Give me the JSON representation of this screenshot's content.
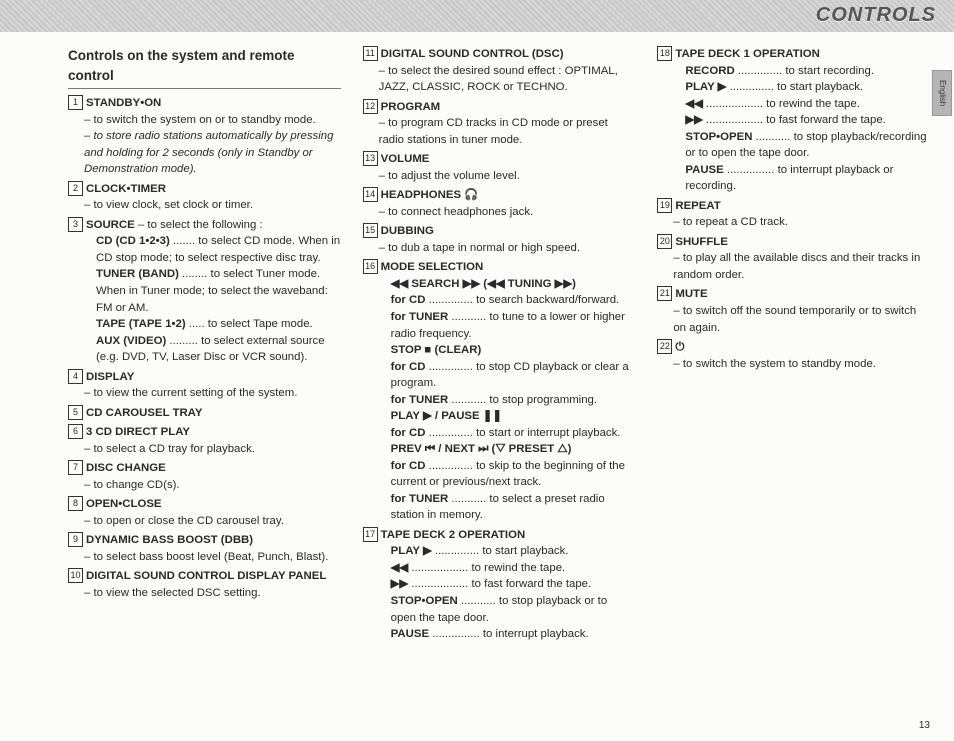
{
  "topbar_title": "CONTROLS",
  "side_tab": "English",
  "section_title": "Controls on the system and remote control",
  "page_number": "13",
  "col1": [
    {
      "num": "1",
      "head": "STANDBY•ON",
      "lines": [
        "– to switch the system on or to standby mode.",
        "– to store radio stations automatically by pressing and holding for 2 seconds (only in Standby or Demonstration mode)."
      ],
      "lastItalic": true
    },
    {
      "num": "2",
      "head": "CLOCK•TIMER",
      "lines": [
        "– to view clock, set clock or timer."
      ]
    },
    {
      "num": "3",
      "head": "SOURCE",
      "tail": " – to select the following :",
      "kv": [
        {
          "k": "CD (CD 1•2•3)",
          "v": "to select CD mode.  When in CD stop mode; to select respective disc tray."
        },
        {
          "k": "TUNER (BAND)",
          "v": "to select Tuner mode.  When in Tuner mode; to select the waveband:  FM or AM."
        },
        {
          "k": "TAPE (TAPE 1•2)",
          "v": "to select Tape mode."
        },
        {
          "k": "AUX (VIDEO)",
          "v": "to select external source (e.g. DVD, TV, Laser Disc or VCR sound)."
        }
      ]
    },
    {
      "num": "4",
      "head": "DISPLAY",
      "lines": [
        "– to view the current setting of the system."
      ]
    },
    {
      "num": "5",
      "head": "CD CAROUSEL TRAY"
    },
    {
      "num": "6",
      "head": "3 CD DIRECT PLAY",
      "lines": [
        "– to select a CD tray for playback."
      ]
    },
    {
      "num": "7",
      "head": "DISC CHANGE",
      "lines": [
        "– to change CD(s)."
      ]
    },
    {
      "num": "8",
      "head": "OPEN•CLOSE",
      "lines": [
        "– to open or close the CD carousel tray."
      ]
    },
    {
      "num": "9",
      "head": "DYNAMIC BASS BOOST  (DBB)",
      "lines": [
        "– to select bass boost level (Beat, Punch, Blast)."
      ]
    },
    {
      "num": "10",
      "head": "DIGITAL SOUND CONTROL DISPLAY PANEL",
      "lines": [
        "– to view the selected DSC setting."
      ]
    }
  ],
  "col2": [
    {
      "num": "11",
      "head": "DIGITAL SOUND CONTROL (DSC)",
      "lines": [
        "– to select the desired sound effect : OPTIMAL, JAZZ, CLASSIC, ROCK or TECHNO."
      ]
    },
    {
      "num": "12",
      "head": "PROGRAM",
      "lines": [
        "– to program CD tracks in CD mode or preset radio stations in tuner mode."
      ]
    },
    {
      "num": "13",
      "head": "VOLUME",
      "lines": [
        "– to adjust the volume level."
      ]
    },
    {
      "num": "14",
      "head": "HEADPHONES  🎧",
      "lines": [
        "– to connect headphones jack."
      ]
    },
    {
      "num": "15",
      "head": "DUBBING",
      "lines": [
        "– to dub a tape in normal or high speed."
      ]
    },
    {
      "num": "16",
      "head": "MODE SELECTION",
      "subhead": "◀◀ SEARCH ▶▶  (◀◀ TUNING ▶▶)",
      "kv2": [
        {
          "k": "for CD",
          "v": "to search backward/forward."
        },
        {
          "k": "for TUNER",
          "v": "to tune to a lower or higher radio frequency."
        }
      ],
      "subhead2": "STOP ■   (CLEAR)",
      "kv3": [
        {
          "k": "for CD",
          "v": "to stop CD playback or clear a program."
        },
        {
          "k": "for TUNER",
          "v": "to stop programming."
        }
      ],
      "subhead3": "PLAY ▶ / PAUSE ❚❚",
      "kv4": [
        {
          "k": "for CD",
          "v": "to start or interrupt playback."
        }
      ],
      "subhead4": "PREV ⏮ / NEXT ⏭  (▽ PRESET △)",
      "kv5": [
        {
          "k": "for CD",
          "v": "to skip to the beginning of the current or previous/next track."
        },
        {
          "k": "for TUNER",
          "v": "to select a preset radio station in memory."
        }
      ]
    },
    {
      "num": "17",
      "head": "TAPE DECK 2 OPERATION",
      "kv": [
        {
          "k": "PLAY ▶",
          "v": "to start playback."
        },
        {
          "k": "◀◀",
          "v": "to rewind the tape."
        },
        {
          "k": "▶▶",
          "v": "to fast forward the tape."
        },
        {
          "k": "STOP•OPEN",
          "v": "to stop playback or to open the tape door."
        },
        {
          "k": "PAUSE",
          "v": "to interrupt playback."
        }
      ]
    }
  ],
  "col3": [
    {
      "num": "18",
      "head": "TAPE DECK 1 OPERATION",
      "kv": [
        {
          "k": "RECORD",
          "v": "to start recording."
        },
        {
          "k": "PLAY ▶",
          "v": "to start playback."
        },
        {
          "k": "◀◀",
          "v": "to rewind the tape."
        },
        {
          "k": "▶▶",
          "v": "to fast forward the tape."
        },
        {
          "k": "STOP•OPEN",
          "v": "to stop playback/recording or to open the tape door."
        },
        {
          "k": "PAUSE",
          "v": "to interrupt playback or recording."
        }
      ]
    },
    {
      "num": "19",
      "head": "REPEAT",
      "lines": [
        "– to repeat a CD track."
      ]
    },
    {
      "num": "20",
      "head": "SHUFFLE",
      "lines": [
        "– to play all the available discs and their tracks in random order."
      ]
    },
    {
      "num": "21",
      "head": "MUTE",
      "lines": [
        "– to switch off the sound temporarily or to switch on again."
      ]
    },
    {
      "num": "22",
      "head": "⏻",
      "lines": [
        "– to switch the system to standby mode."
      ]
    }
  ]
}
